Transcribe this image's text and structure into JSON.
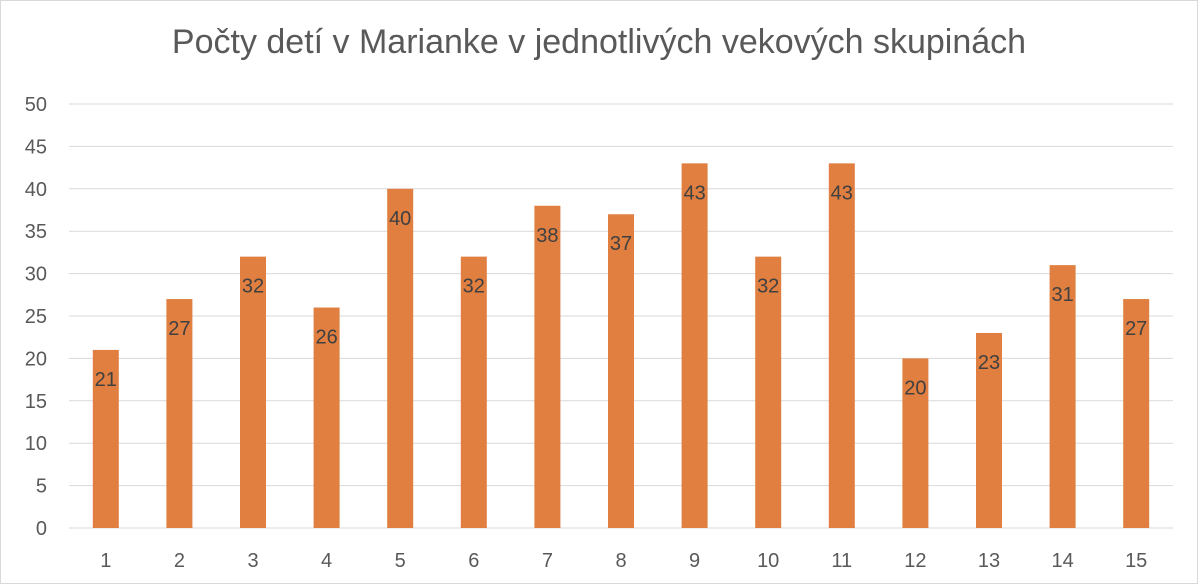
{
  "chart_data": {
    "type": "bar",
    "title": "Počty detí v Marianke v jednotlivých vekových skupinách",
    "xlabel": "",
    "ylabel": "",
    "categories": [
      "1",
      "2",
      "3",
      "4",
      "5",
      "6",
      "7",
      "8",
      "9",
      "10",
      "11",
      "12",
      "13",
      "14",
      "15"
    ],
    "values": [
      21,
      27,
      32,
      26,
      40,
      32,
      38,
      37,
      43,
      32,
      43,
      20,
      23,
      31,
      27
    ],
    "ylim": [
      0,
      50
    ],
    "yticks": [
      0,
      5,
      10,
      15,
      20,
      25,
      30,
      35,
      40,
      45,
      50
    ],
    "grid": true,
    "legend": "none",
    "bar_color": "#E07F40",
    "grid_color": "#d9d9d9"
  }
}
